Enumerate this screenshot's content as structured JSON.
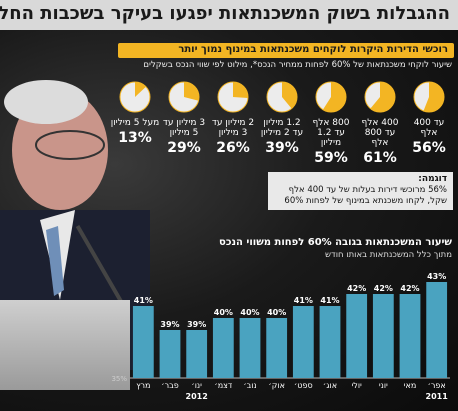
{
  "header": {
    "title": "ההגבלות בשוק המשכנתאות יפגעו בעיקר בשכבות החלשות"
  },
  "pies": {
    "banner": "רוכשי הדירות היקרות לוקחים משכנתאות במינוף נמוך יותר",
    "note": "שיעור לוקחי משכנתאות של 60% לפחות ממחיר הנכס*, מילוט לפי שווי הנכס בשקלים",
    "colors": {
      "fill": "#f3b523",
      "empty": "#ececec",
      "edge": "#f3b523"
    }
  },
  "example": {
    "title": "דוגמה:",
    "body": "56% מרוכשי דירות בעלות של עד 400 אלף שקל, לקחו משכנתא במינוף של לפחות 60%"
  },
  "bars_text": {
    "title": "שיעור המשכנתאות בגובה 60% לפחות משווי הנכס",
    "subtitle": "מתוך כלל המשכנתאות באותו חודש"
  },
  "chart_data": [
    {
      "type": "pie",
      "categories": [
        "עד 400 אלף",
        "400 אלף עד 800 אלף",
        "800 אלף עד 1.2 מיליון",
        "1.2 מיליון עד 2 מיליון",
        "2 מיליון עד 3 מיליון",
        "3 מיליון עד 5 מיליון",
        "מעל 5 מיליון"
      ],
      "values": [
        56,
        61,
        59,
        39,
        26,
        29,
        13
      ],
      "labels": [
        "56%",
        "61%",
        "59%",
        "39%",
        "26%",
        "29%",
        "13%"
      ]
    },
    {
      "type": "bar",
      "categories": [
        "אפר׳",
        "מאי",
        "יוני",
        "יולי",
        "אוג׳",
        "ספט׳",
        "אוק׳",
        "נוב׳",
        "דצמ׳",
        "ינו׳",
        "פבר׳",
        "מרץ"
      ],
      "values": [
        43,
        42,
        42,
        42,
        41,
        41,
        40,
        40,
        40,
        39,
        39,
        41
      ],
      "labels": [
        "43%",
        "42%",
        "42%",
        "42%",
        "41%",
        "41%",
        "40%",
        "40%",
        "40%",
        "39%",
        "39%",
        "41%"
      ],
      "years": [
        "2011",
        "2012"
      ],
      "axis_label": "35%",
      "ylim": [
        35,
        44
      ],
      "color": "#4aa3c0"
    }
  ]
}
